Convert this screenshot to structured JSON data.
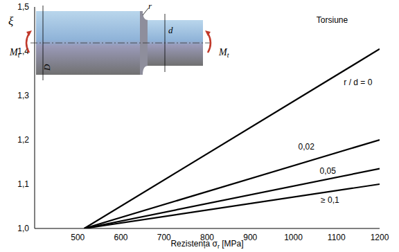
{
  "chart_data": {
    "type": "line",
    "x_label": [
      "Rezistența σ",
      "r",
      " [MPa]"
    ],
    "y_label": "ξ",
    "xlim": [
      400,
      1200
    ],
    "xticks": [
      500,
      600,
      700,
      800,
      900,
      1000,
      1100,
      1200
    ],
    "ylim": [
      1.0,
      1.5
    ],
    "yticks": [
      {
        "value": 1.0,
        "label": "1,0"
      },
      {
        "value": 1.1,
        "label": "1,1"
      },
      {
        "value": 1.2,
        "label": "1,2"
      },
      {
        "value": 1.3,
        "label": "1,3"
      },
      {
        "value": 1.4,
        "label": "1,4"
      },
      {
        "value": 1.5,
        "label": "1,5"
      }
    ],
    "grid": true,
    "annotations": [
      {
        "text": "Torsiune",
        "x": 1090,
        "y": 1.47
      }
    ],
    "series": [
      {
        "name": "r / d = 0",
        "color": "#000000",
        "x": [
          515,
          1200
        ],
        "values": [
          1.0,
          1.405
        ],
        "label_x": 1150,
        "label_y": 1.33
      },
      {
        "name": "0,02",
        "color": "#000000",
        "x": [
          515,
          1200
        ],
        "values": [
          1.0,
          1.2
        ],
        "label_x": 1030,
        "label_y": 1.185
      },
      {
        "name": "0,05",
        "color": "#000000",
        "x": [
          515,
          1200
        ],
        "values": [
          1.0,
          1.135
        ],
        "label_x": 1080,
        "label_y": 1.13
      },
      {
        "name": "≥ 0,1",
        "color": "#000000",
        "x": [
          515,
          1200
        ],
        "values": [
          1.0,
          1.1
        ],
        "label_x": 1085,
        "label_y": 1.065
      }
    ],
    "diagram": {
      "torque": "M",
      "torque_index": "t",
      "large_diameter": "D",
      "small_diameter": "d",
      "fillet_radius": "r"
    }
  }
}
